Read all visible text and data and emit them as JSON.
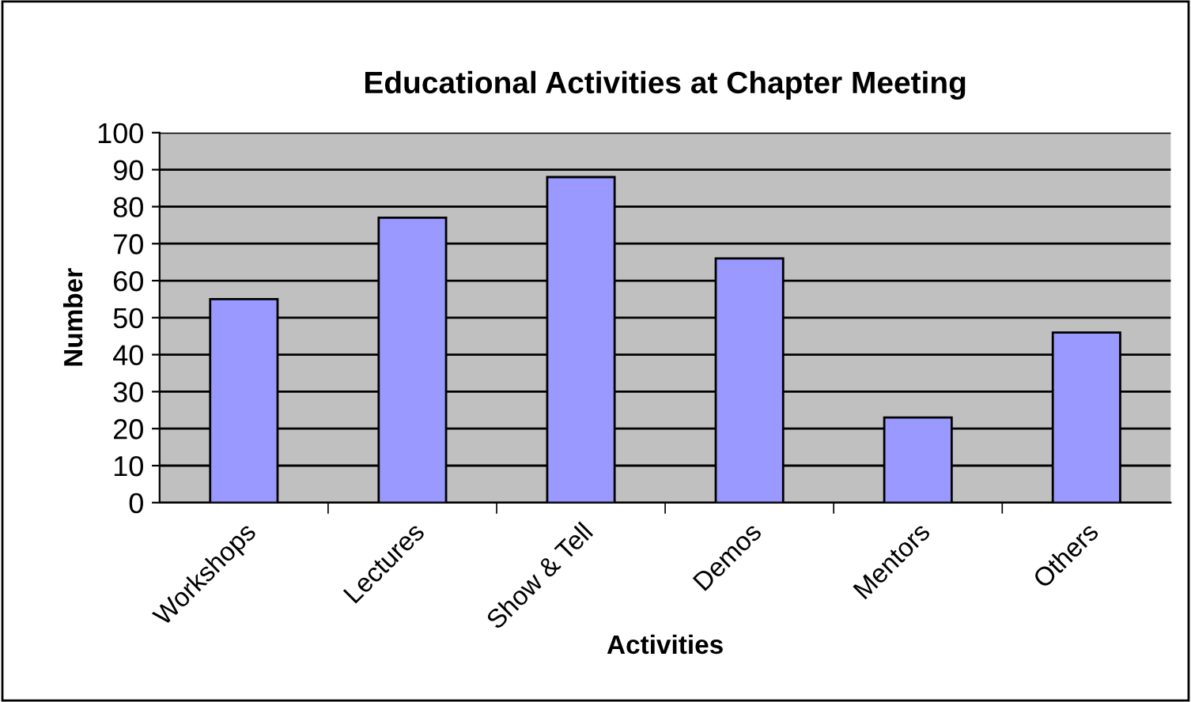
{
  "chart_data": {
    "type": "bar",
    "title": "Educational Activities at Chapter Meeting",
    "xlabel": "Activities",
    "ylabel": "Number",
    "categories": [
      "Workshops",
      "Lectures",
      "Show & Tell",
      "Demos",
      "Mentors",
      "Others"
    ],
    "values": [
      55,
      77,
      88,
      66,
      23,
      46
    ],
    "color": "#9999ff",
    "ylim": [
      0,
      100
    ],
    "yticks": [
      0,
      10,
      20,
      30,
      40,
      50,
      60,
      70,
      80,
      90,
      100
    ],
    "grid": "y",
    "legend": false
  }
}
